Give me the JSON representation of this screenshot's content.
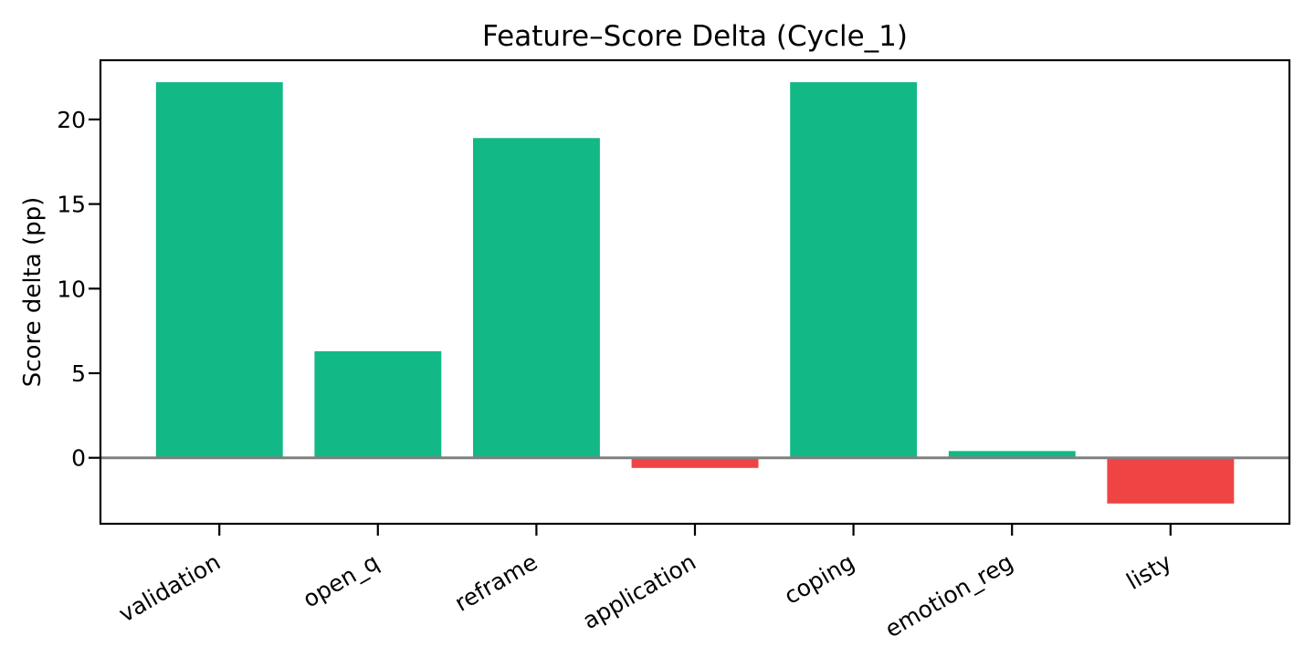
{
  "chart_data": {
    "type": "bar",
    "title": "Feature–Score Delta (Cycle_1)",
    "xlabel": "",
    "ylabel": "Score delta (pp)",
    "categories": [
      "validation",
      "open_q",
      "reframe",
      "application",
      "coping",
      "emotion_reg",
      "listy"
    ],
    "values": [
      22.2,
      6.3,
      18.9,
      -0.6,
      22.2,
      0.4,
      -2.7
    ],
    "yticks": [
      0,
      5,
      10,
      15,
      20
    ],
    "ylim": [
      -3.9,
      23.5
    ],
    "xlim": [
      -0.75,
      6.75
    ],
    "bar_width": 0.8,
    "x_tick_rotation_deg": 30,
    "grid": false,
    "legend": null,
    "zero_line_value": 0,
    "colors": {
      "positive_bar": "#12b886",
      "negative_bar": "#ef4444",
      "zero_line": "#808080",
      "axis": "#000000",
      "background": "#ffffff"
    }
  }
}
